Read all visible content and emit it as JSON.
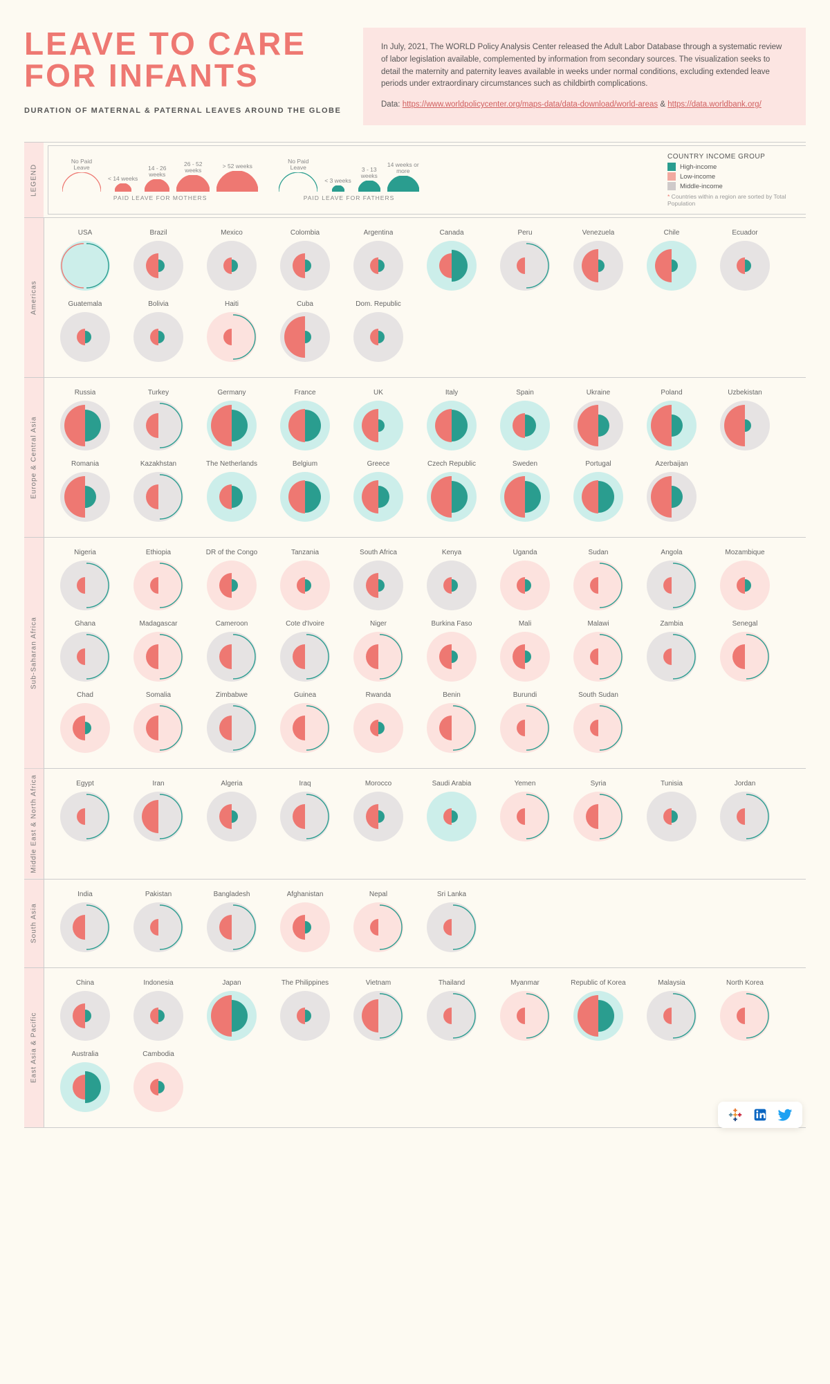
{
  "colors": {
    "bg_page": "#fdfaf2",
    "accent": "#ee7872",
    "intro_bg": "#fce5e2",
    "maternal": "#ee7872",
    "paternal": "#2a9d8f",
    "income_high": "#cceeea",
    "income_low": "#fce2de",
    "income_middle": "#e6e3e3",
    "text": "#555",
    "link": "#d06060",
    "border": "#ccc"
  },
  "title": "LEAVE TO CARE FOR INFANTS",
  "subtitle": "DURATION OF MATERNAL & PATERNAL LEAVES AROUND THE GLOBE",
  "intro": {
    "body": "In July, 2021, The WORLD Policy Analysis Center released the Adult Labor Database through a systematic review of labor legislation available, complemented by information from secondary sources. The visualization seeks to detail the maternity and paternity leaves available in weeks under normal conditions, excluding extended leave periods under extraordinary circumstances such as childbirth complications.",
    "data_label": "Data:",
    "link1": "https://www.worldpolicycenter.org/maps-data/data-download/world-areas",
    "amp": " & ",
    "link2": "https://data.worldbank.org/"
  },
  "legend": {
    "label": "LEGEND",
    "mothers": {
      "title": "PAID LEAVE FOR MOTHERS",
      "steps": [
        {
          "label": "No Paid\nLeave",
          "r": 56,
          "filled": false
        },
        {
          "label": "< 14 weeks",
          "r": 24,
          "filled": true
        },
        {
          "label": "14 - 26\nweeks",
          "r": 36,
          "filled": true
        },
        {
          "label": "26 - 52\nweeks",
          "r": 48,
          "filled": true
        },
        {
          "label": "> 52 weeks",
          "r": 60,
          "filled": true
        }
      ]
    },
    "fathers": {
      "title": "PAID LEAVE FOR FATHERS",
      "steps": [
        {
          "label": "No Paid\nLeave",
          "r": 56,
          "filled": false
        },
        {
          "label": "< 3 weeks",
          "r": 18,
          "filled": true
        },
        {
          "label": "3 - 13\nweeks",
          "r": 32,
          "filled": true
        },
        {
          "label": "14 weeks or\nmore",
          "r": 46,
          "filled": true
        }
      ]
    },
    "income": {
      "title": "COUNTRY INCOME GROUP",
      "items": [
        {
          "label": "High-income",
          "color": "#2a9d8f"
        },
        {
          "label": "Low-income",
          "color": "#f2a9a0"
        },
        {
          "label": "Middle-income",
          "color": "#cfcaca"
        }
      ],
      "note": "* Countries within a region are sorted by Total Population"
    }
  },
  "glyph": {
    "diameter": 72,
    "levels_mat": [
      0,
      24,
      36,
      48,
      60
    ],
    "levels_pat": [
      0,
      18,
      32,
      46
    ]
  },
  "regions": [
    {
      "label": "Americas",
      "countries": [
        {
          "name": "USA",
          "income": "high",
          "mat": 0,
          "pat": 0
        },
        {
          "name": "Brazil",
          "income": "middle",
          "mat": 2,
          "pat": 1
        },
        {
          "name": "Mexico",
          "income": "middle",
          "mat": 1,
          "pat": 1
        },
        {
          "name": "Colombia",
          "income": "middle",
          "mat": 2,
          "pat": 1
        },
        {
          "name": "Argentina",
          "income": "middle",
          "mat": 1,
          "pat": 1
        },
        {
          "name": "Canada",
          "income": "high",
          "mat": 2,
          "pat": 3
        },
        {
          "name": "Peru",
          "income": "middle",
          "mat": 1,
          "pat": 0
        },
        {
          "name": "Venezuela",
          "income": "middle",
          "mat": 3,
          "pat": 1
        },
        {
          "name": "Chile",
          "income": "high",
          "mat": 3,
          "pat": 1
        },
        {
          "name": "Ecuador",
          "income": "middle",
          "mat": 1,
          "pat": 1
        },
        {
          "name": "Guatemala",
          "income": "middle",
          "mat": 1,
          "pat": 1
        },
        {
          "name": "Bolivia",
          "income": "middle",
          "mat": 1,
          "pat": 1
        },
        {
          "name": "Haiti",
          "income": "low",
          "mat": 1,
          "pat": 0
        },
        {
          "name": "Cuba",
          "income": "middle",
          "mat": 4,
          "pat": 1
        },
        {
          "name": "Dom. Republic",
          "income": "middle",
          "mat": 1,
          "pat": 1
        }
      ]
    },
    {
      "label": "Europe & Central Asia",
      "countries": [
        {
          "name": "Russia",
          "income": "middle",
          "mat": 4,
          "pat": 3
        },
        {
          "name": "Turkey",
          "income": "middle",
          "mat": 2,
          "pat": 0
        },
        {
          "name": "Germany",
          "income": "high",
          "mat": 4,
          "pat": 3
        },
        {
          "name": "France",
          "income": "high",
          "mat": 3,
          "pat": 3
        },
        {
          "name": "UK",
          "income": "high",
          "mat": 3,
          "pat": 1
        },
        {
          "name": "Italy",
          "income": "high",
          "mat": 3,
          "pat": 3
        },
        {
          "name": "Spain",
          "income": "high",
          "mat": 2,
          "pat": 2
        },
        {
          "name": "Ukraine",
          "income": "middle",
          "mat": 4,
          "pat": 2
        },
        {
          "name": "Poland",
          "income": "high",
          "mat": 4,
          "pat": 2
        },
        {
          "name": "Uzbekistan",
          "income": "middle",
          "mat": 4,
          "pat": 1
        },
        {
          "name": "Romania",
          "income": "middle",
          "mat": 4,
          "pat": 2
        },
        {
          "name": "Kazakhstan",
          "income": "middle",
          "mat": 2,
          "pat": 0
        },
        {
          "name": "The Netherlands",
          "income": "high",
          "mat": 2,
          "pat": 2
        },
        {
          "name": "Belgium",
          "income": "high",
          "mat": 3,
          "pat": 3
        },
        {
          "name": "Greece",
          "income": "high",
          "mat": 3,
          "pat": 2
        },
        {
          "name": "Czech Republic",
          "income": "high",
          "mat": 4,
          "pat": 3
        },
        {
          "name": "Sweden",
          "income": "high",
          "mat": 4,
          "pat": 3
        },
        {
          "name": "Portugal",
          "income": "high",
          "mat": 3,
          "pat": 3
        },
        {
          "name": "Azerbaijan",
          "income": "middle",
          "mat": 4,
          "pat": 2
        }
      ]
    },
    {
      "label": "Sub-Saharan Africa",
      "countries": [
        {
          "name": "Nigeria",
          "income": "middle",
          "mat": 1,
          "pat": 0
        },
        {
          "name": "Ethiopia",
          "income": "low",
          "mat": 1,
          "pat": 0
        },
        {
          "name": "DR of the Congo",
          "income": "low",
          "mat": 2,
          "pat": 1
        },
        {
          "name": "Tanzania",
          "income": "low",
          "mat": 1,
          "pat": 1
        },
        {
          "name": "South Africa",
          "income": "middle",
          "mat": 2,
          "pat": 1
        },
        {
          "name": "Kenya",
          "income": "middle",
          "mat": 1,
          "pat": 1
        },
        {
          "name": "Uganda",
          "income": "low",
          "mat": 1,
          "pat": 1
        },
        {
          "name": "Sudan",
          "income": "low",
          "mat": 1,
          "pat": 0
        },
        {
          "name": "Angola",
          "income": "middle",
          "mat": 1,
          "pat": 0
        },
        {
          "name": "Mozambique",
          "income": "low",
          "mat": 1,
          "pat": 1
        },
        {
          "name": "Ghana",
          "income": "middle",
          "mat": 1,
          "pat": 0
        },
        {
          "name": "Madagascar",
          "income": "low",
          "mat": 2,
          "pat": 0
        },
        {
          "name": "Cameroon",
          "income": "middle",
          "mat": 2,
          "pat": 0
        },
        {
          "name": "Cote d'Ivoire",
          "income": "middle",
          "mat": 2,
          "pat": 0
        },
        {
          "name": "Niger",
          "income": "low",
          "mat": 2,
          "pat": 0
        },
        {
          "name": "Burkina Faso",
          "income": "low",
          "mat": 2,
          "pat": 1
        },
        {
          "name": "Mali",
          "income": "low",
          "mat": 2,
          "pat": 1
        },
        {
          "name": "Malawi",
          "income": "low",
          "mat": 1,
          "pat": 0
        },
        {
          "name": "Zambia",
          "income": "middle",
          "mat": 1,
          "pat": 0
        },
        {
          "name": "Senegal",
          "income": "low",
          "mat": 2,
          "pat": 0
        },
        {
          "name": "Chad",
          "income": "low",
          "mat": 2,
          "pat": 1
        },
        {
          "name": "Somalia",
          "income": "low",
          "mat": 2,
          "pat": 0
        },
        {
          "name": "Zimbabwe",
          "income": "middle",
          "mat": 2,
          "pat": 0
        },
        {
          "name": "Guinea",
          "income": "low",
          "mat": 2,
          "pat": 0
        },
        {
          "name": "Rwanda",
          "income": "low",
          "mat": 1,
          "pat": 1
        },
        {
          "name": "Benin",
          "income": "low",
          "mat": 2,
          "pat": 0
        },
        {
          "name": "Burundi",
          "income": "low",
          "mat": 1,
          "pat": 0
        },
        {
          "name": "South Sudan",
          "income": "low",
          "mat": 1,
          "pat": 0
        }
      ]
    },
    {
      "label": "Middle East & North Africa",
      "countries": [
        {
          "name": "Egypt",
          "income": "middle",
          "mat": 1,
          "pat": 0
        },
        {
          "name": "Iran",
          "income": "middle",
          "mat": 3,
          "pat": 0
        },
        {
          "name": "Algeria",
          "income": "middle",
          "mat": 2,
          "pat": 1
        },
        {
          "name": "Iraq",
          "income": "middle",
          "mat": 2,
          "pat": 0
        },
        {
          "name": "Morocco",
          "income": "middle",
          "mat": 2,
          "pat": 1
        },
        {
          "name": "Saudi Arabia",
          "income": "high",
          "mat": 1,
          "pat": 1
        },
        {
          "name": "Yemen",
          "income": "low",
          "mat": 1,
          "pat": 0
        },
        {
          "name": "Syria",
          "income": "low",
          "mat": 2,
          "pat": 0
        },
        {
          "name": "Tunisia",
          "income": "middle",
          "mat": 1,
          "pat": 1
        },
        {
          "name": "Jordan",
          "income": "middle",
          "mat": 1,
          "pat": 0
        }
      ]
    },
    {
      "label": "South Asia",
      "countries": [
        {
          "name": "India",
          "income": "middle",
          "mat": 2,
          "pat": 0
        },
        {
          "name": "Pakistan",
          "income": "middle",
          "mat": 1,
          "pat": 0
        },
        {
          "name": "Bangladesh",
          "income": "middle",
          "mat": 2,
          "pat": 0
        },
        {
          "name": "Afghanistan",
          "income": "low",
          "mat": 2,
          "pat": 1
        },
        {
          "name": "Nepal",
          "income": "low",
          "mat": 1,
          "pat": 0
        },
        {
          "name": "Sri Lanka",
          "income": "middle",
          "mat": 1,
          "pat": 0
        }
      ]
    },
    {
      "label": "East Asia & Pacific",
      "countries": [
        {
          "name": "China",
          "income": "middle",
          "mat": 2,
          "pat": 1
        },
        {
          "name": "Indonesia",
          "income": "middle",
          "mat": 1,
          "pat": 1
        },
        {
          "name": "Japan",
          "income": "high",
          "mat": 4,
          "pat": 3
        },
        {
          "name": "The Philippines",
          "income": "middle",
          "mat": 1,
          "pat": 1
        },
        {
          "name": "Vietnam",
          "income": "middle",
          "mat": 3,
          "pat": 0
        },
        {
          "name": "Thailand",
          "income": "middle",
          "mat": 1,
          "pat": 0
        },
        {
          "name": "Myanmar",
          "income": "low",
          "mat": 1,
          "pat": 0
        },
        {
          "name": "Republic of Korea",
          "income": "high",
          "mat": 4,
          "pat": 3
        },
        {
          "name": "Malaysia",
          "income": "middle",
          "mat": 1,
          "pat": 0
        },
        {
          "name": "North Korea",
          "income": "low",
          "mat": 1,
          "pat": 0
        },
        {
          "name": "Australia",
          "income": "high",
          "mat": 2,
          "pat": 3
        },
        {
          "name": "Cambodia",
          "income": "low",
          "mat": 1,
          "pat": 1
        }
      ]
    }
  ],
  "social": [
    "tableau",
    "linkedin",
    "twitter"
  ]
}
